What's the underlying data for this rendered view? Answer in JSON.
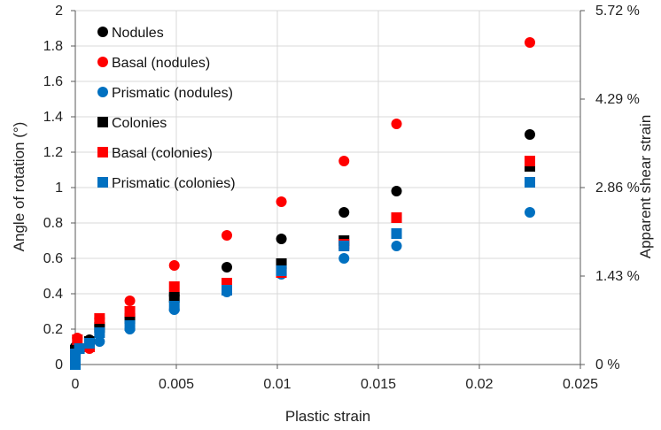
{
  "chart_data": {
    "type": "scatter",
    "xlabel": "Plastic strain",
    "ylabel": "Angle of rotation (°)",
    "y2label": "Apparent shear strain",
    "xlim": [
      0,
      0.025
    ],
    "ylim": [
      0,
      2
    ],
    "x_ticks": [
      "0",
      "0.005",
      "0.01",
      "0.015",
      "0.02",
      "0.025"
    ],
    "y_ticks": [
      "0",
      "0.2",
      "0.4",
      "0.6",
      "0.8",
      "1",
      "1.2",
      "1.4",
      "1.6",
      "1.8",
      "2"
    ],
    "y2_ticks": [
      {
        "label": "0 %",
        "value": 0
      },
      {
        "label": "1.43 %",
        "value": 0.5
      },
      {
        "label": "2.86 %",
        "value": 1.0
      },
      {
        "label": "4.29 %",
        "value": 1.5
      },
      {
        "label": "5.72 %",
        "value": 2.0
      }
    ],
    "grid": true,
    "legend_position": "top-left",
    "series": [
      {
        "name": "Nodules",
        "marker": "circle",
        "color": "#000000",
        "points": [
          [
            0,
            0
          ],
          [
            0,
            0.05
          ],
          [
            0,
            0.1
          ],
          [
            0.0007,
            0.14
          ],
          [
            0.0012,
            0.22
          ],
          [
            0.0027,
            0.27
          ],
          [
            0.0049,
            0.39
          ],
          [
            0.0075,
            0.55
          ],
          [
            0.0102,
            0.71
          ],
          [
            0.0133,
            0.86
          ],
          [
            0.0159,
            0.98
          ],
          [
            0.0225,
            1.3
          ]
        ]
      },
      {
        "name": "Basal (nodules)",
        "marker": "circle",
        "color": "#ff0000",
        "points": [
          [
            0,
            0.02
          ],
          [
            0.0001,
            0.15
          ],
          [
            0.0007,
            0.09
          ],
          [
            0.0012,
            0.26
          ],
          [
            0.0027,
            0.36
          ],
          [
            0.0049,
            0.56
          ],
          [
            0.0075,
            0.73
          ],
          [
            0.0102,
            0.92
          ],
          [
            0.0133,
            1.15
          ],
          [
            0.0159,
            1.36
          ],
          [
            0.0225,
            1.82
          ]
        ]
      },
      {
        "name": "Prismatic (nodules)",
        "marker": "circle",
        "color": "#0070c0",
        "points": [
          [
            0,
            0
          ],
          [
            0,
            0.06
          ],
          [
            0.0001,
            0.08
          ],
          [
            0.0007,
            0.11
          ],
          [
            0.0012,
            0.13
          ],
          [
            0.0027,
            0.2
          ],
          [
            0.0049,
            0.31
          ],
          [
            0.0075,
            0.41
          ],
          [
            0.0102,
            0.51
          ],
          [
            0.0133,
            0.6
          ],
          [
            0.0159,
            0.67
          ],
          [
            0.0225,
            0.86
          ]
        ]
      },
      {
        "name": "Colonies",
        "marker": "square",
        "color": "#000000",
        "points": [
          [
            0,
            0.01
          ],
          [
            0,
            0.08
          ],
          [
            0.0007,
            0.13
          ],
          [
            0.0012,
            0.21
          ],
          [
            0.0027,
            0.26
          ],
          [
            0.0049,
            0.38
          ],
          [
            0.0075,
            0.44
          ],
          [
            0.0102,
            0.57
          ],
          [
            0.0133,
            0.7
          ],
          [
            0.0159,
            0.83
          ],
          [
            0.0225,
            1.12
          ]
        ]
      },
      {
        "name": "Basal (colonies)",
        "marker": "square",
        "color": "#ff0000",
        "points": [
          [
            0,
            0.02
          ],
          [
            0.0001,
            0.14
          ],
          [
            0.0007,
            0.1
          ],
          [
            0.0012,
            0.26
          ],
          [
            0.0027,
            0.3
          ],
          [
            0.0049,
            0.44
          ],
          [
            0.0075,
            0.46
          ],
          [
            0.0102,
            0.52
          ],
          [
            0.0133,
            0.68
          ],
          [
            0.0159,
            0.83
          ],
          [
            0.0225,
            1.15
          ]
        ]
      },
      {
        "name": "Prismatic (colonies)",
        "marker": "square",
        "color": "#0070c0",
        "points": [
          [
            0,
            0.0
          ],
          [
            0,
            0.06
          ],
          [
            0.0002,
            0.09
          ],
          [
            0.0007,
            0.12
          ],
          [
            0.0012,
            0.18
          ],
          [
            0.0027,
            0.22
          ],
          [
            0.0049,
            0.33
          ],
          [
            0.0075,
            0.42
          ],
          [
            0.0102,
            0.53
          ],
          [
            0.0133,
            0.67
          ],
          [
            0.0159,
            0.74
          ],
          [
            0.0225,
            1.03
          ]
        ]
      }
    ]
  }
}
